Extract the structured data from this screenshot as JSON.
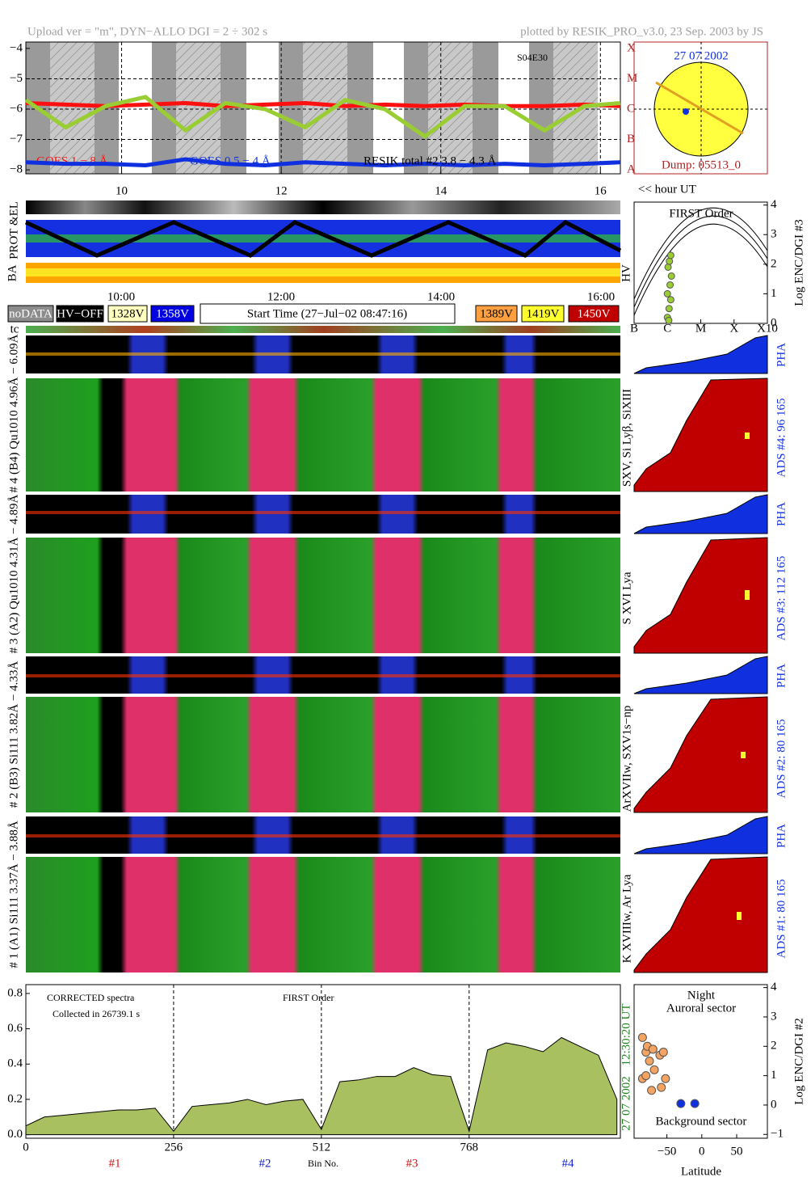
{
  "header": {
    "left": "Upload ver = \"m\", DYN−ALLO DGI =   2 ÷ 302 s",
    "right": "plotted by RESIK_PRO_v3.0, 23 Sep. 2003 by JS"
  },
  "sun": {
    "date": "27 07 2002",
    "dump": "Dump: 05513_0"
  },
  "strips": {
    "prot": "PROT &EL",
    "ba": "BA",
    "hv": "HV",
    "hour_label": "<< hour UT",
    "time_ticks": [
      "10:00",
      "12:00",
      "14:00",
      "16:00"
    ],
    "tc": "tc"
  },
  "legend": {
    "items": [
      {
        "label": "noDATA",
        "color": "#8c8c8c",
        "text": "#ffffff"
      },
      {
        "label": "HV−OFF",
        "color": "#000000",
        "text": "#ffffff"
      },
      {
        "label": "1328V",
        "color": "#ffffc0",
        "text": "#000000"
      },
      {
        "label": "1358V",
        "color": "#0000e0",
        "text": "#ffffff"
      },
      {
        "label": "1389V",
        "color": "#ffa040",
        "text": "#000000"
      },
      {
        "label": "1419V",
        "color": "#ffff30",
        "text": "#000000"
      },
      {
        "label": "1450V",
        "color": "#c00000",
        "text": "#ffffff"
      }
    ],
    "start_time": "Start Time (27−Jul−02 08:47:16)"
  },
  "channels": [
    {
      "name": "# 4 (B4) Qu1010 4.96Å − 6.09Å",
      "pha": "PHA",
      "ads": "ADS #4:   96 165",
      "lines": "SXV, Si Lyβ, SiXIII"
    },
    {
      "name": "# 3 (A2) Qu1010 4.31Å − 4.89Å",
      "pha": "PHA",
      "ads": "ADS #3:  112 165",
      "lines": "S XVI Lya"
    },
    {
      "name": "# 2 (B3) Si111 3.82Å − 4.33Å",
      "pha": "PHA",
      "ads": "ADS #2:   80 165",
      "lines": "ArXVIIw, SXV1s−np"
    },
    {
      "name": "# 1 (A1) Si111 3.37Å − 3.88Å",
      "pha": "PHA",
      "ads": "ADS #1:   80 165",
      "lines": "K XVIIIw, Ar Lya"
    }
  ],
  "chart_data": [
    {
      "type": "line",
      "annotation": "S04E30",
      "x": [
        8.8,
        9.3,
        9.8,
        10.3,
        10.8,
        11.3,
        11.8,
        12.3,
        12.8,
        13.3,
        13.8,
        14.3,
        14.8,
        15.3,
        15.8,
        16.25
      ],
      "series": [
        {
          "name": "GOES 1 − 8 Å",
          "color": "#ff1010",
          "values": [
            -5.8,
            -5.85,
            -5.9,
            -5.85,
            -5.8,
            -5.9,
            -5.85,
            -5.8,
            -5.9,
            -5.85,
            -5.9,
            -5.85,
            -5.9,
            -5.9,
            -5.85,
            -5.9
          ]
        },
        {
          "name": "GOES 0.5 − 4 Å",
          "color": "#1030e0",
          "values": [
            -7.75,
            -7.8,
            -7.8,
            -7.85,
            -7.65,
            -7.8,
            -7.85,
            -7.75,
            -7.8,
            -7.85,
            -7.8,
            -7.85,
            -7.8,
            -7.85,
            -7.8,
            -7.75
          ]
        },
        {
          "name": "RESIK total #2 3.8 − 4.3 Å",
          "color": "#9acd32",
          "values": [
            -5.7,
            -6.6,
            -5.9,
            -5.6,
            -6.7,
            -5.8,
            -6.0,
            -6.6,
            -5.7,
            -6.0,
            -6.9,
            -5.9,
            -5.9,
            -6.7,
            -5.9,
            -5.8
          ]
        }
      ],
      "xlim": [
        8.8,
        16.25
      ],
      "xticks": [
        10,
        12,
        14,
        16
      ],
      "ylim": [
        -8.13,
        -3.79
      ],
      "yticks": [
        {
          "value": -4,
          "label": "−4"
        },
        {
          "value": -5,
          "label": "−5"
        },
        {
          "value": -6,
          "label": "−6"
        },
        {
          "value": -7,
          "label": "−7"
        },
        {
          "value": -8,
          "label": "−8"
        }
      ],
      "y2ticks": [
        {
          "value": -4,
          "label": "X"
        },
        {
          "value": -5,
          "label": "M"
        },
        {
          "value": -6,
          "label": "C"
        },
        {
          "value": -7,
          "label": "B"
        },
        {
          "value": -8,
          "label": "A"
        }
      ],
      "grid": true
    },
    {
      "type": "scatter",
      "title": "FIRST Order",
      "y_label": "Log ENC/DGI #3",
      "series": [
        {
          "color": "#9acd32",
          "x": [
            1.0,
            1.05,
            1.1,
            1.0,
            1.08,
            1.12,
            1.02,
            1.06,
            1.1,
            1.04
          ],
          "values": [
            0.2,
            0.5,
            0.8,
            1.0,
            1.3,
            1.6,
            1.9,
            2.1,
            2.3,
            0.1
          ]
        }
      ],
      "xlim": [
        0,
        4
      ],
      "xticks": [
        {
          "value": 0,
          "label": "B"
        },
        {
          "value": 1,
          "label": "C"
        },
        {
          "value": 2,
          "label": "M"
        },
        {
          "value": 3,
          "label": "X"
        },
        {
          "value": 4,
          "label": "X10"
        }
      ],
      "ylim": [
        0,
        4.1
      ],
      "yticks": [
        0,
        1,
        2,
        3,
        4
      ],
      "grid": false
    },
    {
      "type": "area",
      "x_label": "Bin No.",
      "annotations": [
        "CORRECTED spectra",
        "Collected in 26739.1 s",
        "FIRST Order"
      ],
      "sections": [
        "#1",
        "#2",
        "#3",
        "#4"
      ],
      "side_labels": [
        "12:30:20 UT",
        "27 07 2002"
      ],
      "color": "#a8c060",
      "x": [
        0,
        32,
        64,
        96,
        128,
        160,
        192,
        224,
        256,
        288,
        320,
        352,
        384,
        416,
        448,
        480,
        512,
        544,
        576,
        608,
        640,
        672,
        704,
        736,
        768,
        800,
        832,
        864,
        896,
        928,
        960,
        992,
        1024
      ],
      "values": [
        0.05,
        0.1,
        0.11,
        0.12,
        0.13,
        0.14,
        0.14,
        0.15,
        0.02,
        0.16,
        0.17,
        0.18,
        0.2,
        0.17,
        0.19,
        0.2,
        0.03,
        0.3,
        0.31,
        0.33,
        0.33,
        0.38,
        0.34,
        0.33,
        0.02,
        0.48,
        0.52,
        0.5,
        0.47,
        0.55,
        0.5,
        0.45,
        0.2
      ],
      "xlim": [
        0,
        1030
      ],
      "xticks": [
        0,
        256,
        512,
        768
      ],
      "ylim": [
        -0.02,
        0.85
      ],
      "yticks": [
        {
          "value": 0,
          "label": "0.0"
        },
        {
          "value": 0.2,
          "label": "0.2"
        },
        {
          "value": 0.4,
          "label": "0.4"
        },
        {
          "value": 0.6,
          "label": "0.6"
        },
        {
          "value": 0.8,
          "label": "0.8"
        }
      ],
      "grid": true
    },
    {
      "type": "scatter",
      "title": "Night",
      "subtitle": "Auroral sector",
      "annotation": "Background sector",
      "x_label": "Latitude",
      "y_label": "Log ENC/DGI #2",
      "series": [
        {
          "color": "#f4a460",
          "x": [
            -85,
            -80,
            -78,
            -75,
            -70,
            -68,
            -60,
            -55,
            -52,
            -85,
            -80,
            -72,
            -58
          ],
          "values": [
            2.3,
            1.8,
            2.0,
            1.5,
            1.9,
            1.2,
            1.7,
            1.8,
            0.9,
            0.9,
            1.0,
            0.5,
            0.6
          ]
        },
        {
          "color": "#1030e0",
          "x": [
            -30,
            -10
          ],
          "values": [
            0.05,
            0.05
          ]
        }
      ],
      "xlim": [
        -97,
        94
      ],
      "xticks": [
        {
          "value": -50,
          "label": "−50"
        },
        0,
        50
      ],
      "ylim": [
        -1.13,
        4.1
      ],
      "yticks": [
        {
          "value": -1,
          "label": "−1"
        },
        0,
        1,
        2,
        3,
        4
      ],
      "grid": false
    }
  ]
}
